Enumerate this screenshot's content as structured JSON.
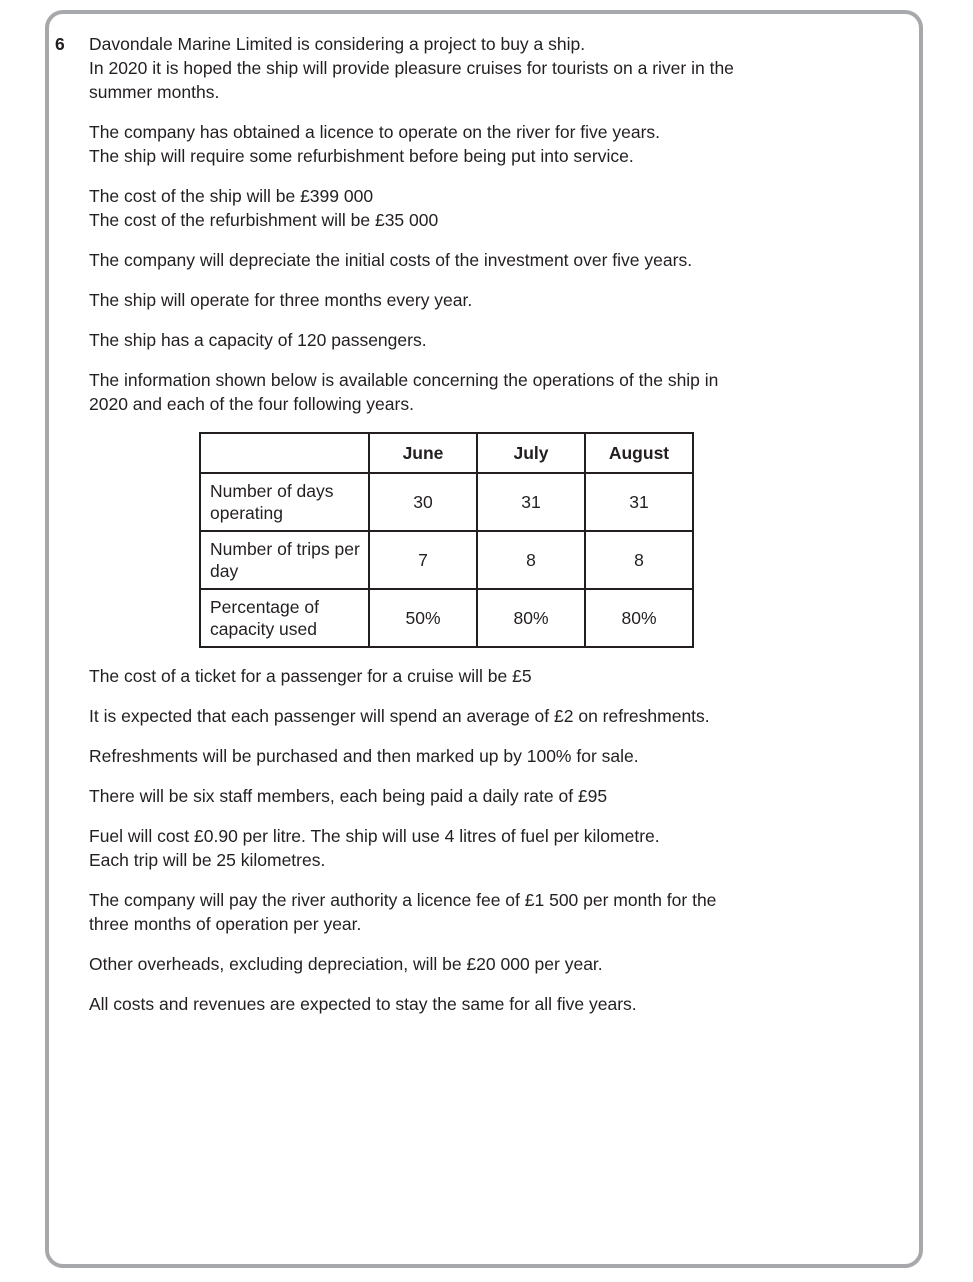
{
  "page": {
    "background_color": "#ffffff",
    "frame_border_color": "#a6a8ab",
    "text_color": "#231f20"
  },
  "question": {
    "number": "6",
    "paragraphs_before_table": [
      "Davondale Marine Limited is considering a project to buy a ship.\nIn 2020 it is hoped the ship will provide pleasure cruises for tourists on a river in the\nsummer months.",
      "The company has obtained a licence to operate on the river for five years.\nThe ship will require some refurbishment before being put into service.",
      "The cost of the ship will be £399 000\nThe cost of the refurbishment will be £35 000",
      "The company will depreciate the initial costs of the investment over five years.",
      "The ship will operate for three months every year.",
      "The ship has a capacity of 120 passengers.",
      "The information shown below is available concerning the operations of the ship in\n2020 and each of the four following years."
    ],
    "table": {
      "column_headers": [
        "June",
        "July",
        "August"
      ],
      "rows": [
        {
          "label": "Number of days operating",
          "values": [
            "30",
            "31",
            "31"
          ]
        },
        {
          "label": "Number of trips per day",
          "values": [
            "7",
            "8",
            "8"
          ]
        },
        {
          "label": "Percentage of capacity used",
          "values": [
            "50%",
            "80%",
            "80%"
          ]
        }
      ]
    },
    "paragraphs_after_table": [
      "The cost of a ticket for a passenger for a cruise will be £5",
      "It is expected that each passenger will spend an average of £2 on refreshments.",
      "Refreshments will be purchased and then marked up by 100% for sale.",
      "There will be six staff members, each being paid a daily rate of £95",
      "Fuel will cost £0.90 per litre. The ship will use 4 litres of fuel per kilometre.\nEach trip will be 25 kilometres.",
      "The company will pay the river authority a licence fee of £1 500 per month for the\nthree months of operation per year.",
      "Other overheads, excluding depreciation, will be £20 000 per year.",
      "All costs and revenues are expected to stay the same for all five years."
    ]
  }
}
